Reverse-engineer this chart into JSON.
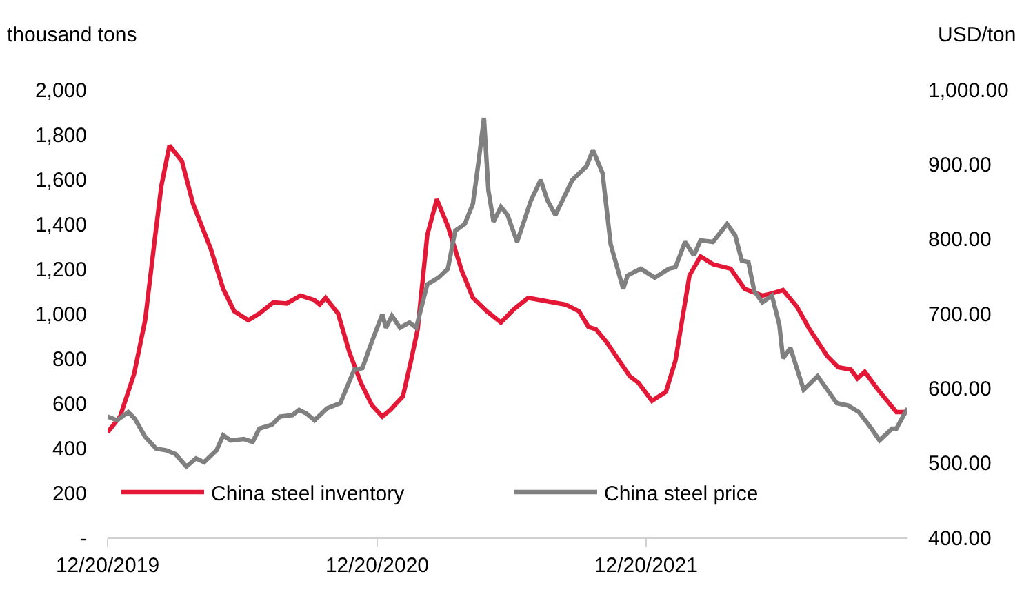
{
  "chart_data": {
    "type": "line",
    "ylabel": "thousand tons",
    "y2label": "USD/ton",
    "xlim": [
      "2019-12-20",
      "2022-12-10"
    ],
    "xticks": [
      {
        "value": "2019-12-20",
        "label": "12/20/2019"
      },
      {
        "value": "2020-12-20",
        "label": "12/20/2020"
      },
      {
        "value": "2021-12-20",
        "label": "12/20/2021"
      }
    ],
    "ylim": [
      0,
      2000
    ],
    "yticks": [
      {
        "value": 0,
        "label": "-"
      },
      200,
      400,
      600,
      800,
      {
        "value": 1000,
        "label": "1,000"
      },
      {
        "value": 1200,
        "label": "1,200"
      },
      {
        "value": 1400,
        "label": "1,400"
      },
      {
        "value": 1600,
        "label": "1,600"
      },
      {
        "value": 1800,
        "label": "1,800"
      },
      {
        "value": 2000,
        "label": "2,000"
      }
    ],
    "y2lim": [
      400,
      1000
    ],
    "y2ticks": [
      {
        "value": 400,
        "label": "400.00"
      },
      {
        "value": 500,
        "label": "500.00"
      },
      {
        "value": 600,
        "label": "600.00"
      },
      {
        "value": 700,
        "label": "700.00"
      },
      {
        "value": 800,
        "label": "800.00"
      },
      {
        "value": 900,
        "label": "900.00"
      },
      {
        "value": 1000,
        "label": "1,000.00"
      }
    ],
    "legend": "bottom",
    "marker": "none",
    "line_style": "solid",
    "series": [
      {
        "name": "China steel inventory",
        "color": "#e31837",
        "x": [
          "2019-12-20",
          "2020-01-06",
          "2020-01-25",
          "2020-02-09",
          "2020-02-22",
          "2020-03-02",
          "2020-03-13",
          "2020-03-30",
          "2020-04-14",
          "2020-05-08",
          "2020-05-25",
          "2020-06-09",
          "2020-06-28",
          "2020-07-13",
          "2020-08-01",
          "2020-08-19",
          "2020-09-07",
          "2020-09-26",
          "2020-10-03",
          "2020-10-11",
          "2020-10-28",
          "2020-11-12",
          "2020-11-28",
          "2020-12-13",
          "2020-12-27",
          "2021-01-07",
          "2021-01-24",
          "2021-02-04",
          "2021-02-13",
          "2021-02-26",
          "2021-03-11",
          "2021-03-26",
          "2021-04-14",
          "2021-04-29",
          "2021-05-18",
          "2021-06-06",
          "2021-06-24",
          "2021-07-13",
          "2021-09-02",
          "2021-09-20",
          "2021-10-03",
          "2021-10-13",
          "2021-10-28",
          "2021-11-28",
          "2021-12-10",
          "2021-12-28",
          "2022-01-16",
          "2022-01-29",
          "2022-02-17",
          "2022-03-04",
          "2022-03-21",
          "2022-04-14",
          "2022-05-03",
          "2022-05-27",
          "2022-06-09",
          "2022-06-24",
          "2022-07-13",
          "2022-07-30",
          "2022-08-23",
          "2022-09-07",
          "2022-09-24",
          "2022-10-03",
          "2022-10-13",
          "2022-10-31",
          "2022-11-25",
          "2022-12-10"
        ],
        "values": [
          470,
          540,
          730,
          970,
          1330,
          1570,
          1750,
          1680,
          1490,
          1290,
          1110,
          1010,
          970,
          1000,
          1050,
          1045,
          1080,
          1060,
          1040,
          1070,
          1000,
          830,
          690,
          590,
          540,
          570,
          630,
          790,
          930,
          1350,
          1510,
          1390,
          1190,
          1070,
          1010,
          960,
          1020,
          1070,
          1040,
          1010,
          940,
          930,
          870,
          720,
          690,
          610,
          650,
          790,
          1170,
          1255,
          1220,
          1200,
          1110,
          1080,
          1090,
          1105,
          1030,
          930,
          810,
          760,
          750,
          710,
          740,
          660,
          560,
          560
        ]
      },
      {
        "name": "China steel price",
        "color": "#808080",
        "axis": "y2",
        "x": [
          "2019-12-20",
          "2020-01-02",
          "2020-01-17",
          "2020-01-26",
          "2020-02-09",
          "2020-02-24",
          "2020-03-08",
          "2020-03-21",
          "2020-04-05",
          "2020-04-18",
          "2020-04-29",
          "2020-05-16",
          "2020-05-25",
          "2020-06-04",
          "2020-06-22",
          "2020-07-04",
          "2020-07-13",
          "2020-07-30",
          "2020-08-10",
          "2020-08-27",
          "2020-09-05",
          "2020-09-15",
          "2020-09-26",
          "2020-10-13",
          "2020-10-31",
          "2020-11-19",
          "2020-11-30",
          "2020-12-13",
          "2020-12-27",
          "2021-01-01",
          "2021-01-09",
          "2021-01-20",
          "2021-02-02",
          "2021-02-11",
          "2021-02-26",
          "2021-03-13",
          "2021-03-26",
          "2021-04-05",
          "2021-04-18",
          "2021-04-29",
          "2021-05-07",
          "2021-05-14",
          "2021-05-20",
          "2021-05-27",
          "2021-06-06",
          "2021-06-15",
          "2021-06-28",
          "2021-07-17",
          "2021-07-30",
          "2021-08-08",
          "2021-08-19",
          "2021-09-11",
          "2021-09-30",
          "2021-10-09",
          "2021-10-22",
          "2021-11-02",
          "2021-11-19",
          "2021-11-25",
          "2021-12-13",
          "2022-01-01",
          "2022-01-20",
          "2022-01-29",
          "2022-02-11",
          "2022-02-23",
          "2022-03-04",
          "2022-03-21",
          "2022-04-09",
          "2022-04-20",
          "2022-04-29",
          "2022-05-08",
          "2022-05-16",
          "2022-05-27",
          "2022-06-09",
          "2022-06-19",
          "2022-06-24",
          "2022-07-04",
          "2022-07-22",
          "2022-08-10",
          "2022-08-23",
          "2022-09-05",
          "2022-09-20",
          "2022-10-05",
          "2022-10-22",
          "2022-11-02",
          "2022-11-19",
          "2022-11-25",
          "2022-12-10"
        ],
        "values": [
          562,
          557,
          568,
          559,
          535,
          519,
          517,
          512,
          495,
          506,
          501,
          517,
          537,
          530,
          532,
          528,
          546,
          551,
          562,
          564,
          571,
          566,
          557,
          573,
          580,
          625,
          627,
          663,
          699,
          681,
          697,
          681,
          688,
          681,
          739,
          748,
          760,
          811,
          820,
          847,
          906,
          962,
          865,
          823,
          843,
          832,
          796,
          852,
          879,
          852,
          832,
          879,
          897,
          919,
          888,
          793,
          733,
          751,
          760,
          748,
          760,
          762,
          796,
          778,
          798,
          796,
          820,
          805,
          771,
          769,
          730,
          715,
          724,
          685,
          640,
          654,
          598,
          616,
          598,
          580,
          577,
          568,
          546,
          530,
          546,
          546,
          573
        ]
      }
    ]
  }
}
